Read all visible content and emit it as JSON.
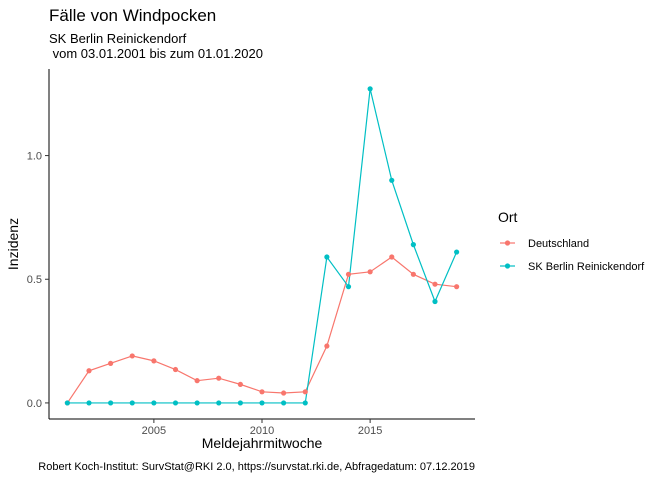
{
  "chart_data": {
    "type": "line",
    "title": "Fälle von Windpocken",
    "subtitle_line1": "SK Berlin Reinickendorf",
    "subtitle_line2": " vom 03.01.2001 bis zum 01.01.2020",
    "xlabel": "Meldejahrmitwoche",
    "ylabel": "Inzidenz",
    "caption": "Robert Koch-Institut: SurvStat@RKI 2.0, https://survstat.rki.de, Abfragedatum: 07.12.2019",
    "xlim": [
      2000.15,
      2019.85
    ],
    "ylim": [
      -0.065,
      1.35
    ],
    "x_ticks": [
      2005,
      2010,
      2015
    ],
    "x_tick_labels": [
      "2005",
      "2010",
      "2015"
    ],
    "y_ticks": [
      0,
      0.5,
      1.0
    ],
    "y_tick_labels": [
      "0.0",
      "0.5",
      "1.0"
    ],
    "grid": false,
    "legend": {
      "title": "Ort",
      "position": "right"
    },
    "x": [
      2001,
      2002,
      2003,
      2004,
      2005,
      2006,
      2007,
      2008,
      2009,
      2010,
      2011,
      2012,
      2013,
      2014,
      2015,
      2016,
      2017,
      2018,
      2019
    ],
    "series": [
      {
        "name": "Deutschland",
        "color": "#F8766D",
        "values": [
          0.0,
          0.13,
          0.16,
          0.19,
          0.17,
          0.135,
          0.09,
          0.1,
          0.075,
          0.045,
          0.04,
          0.045,
          0.23,
          0.52,
          0.53,
          0.59,
          0.52,
          0.48,
          0.47
        ]
      },
      {
        "name": "SK Berlin Reinickendorf",
        "color": "#00BFC4",
        "values": [
          0.0,
          0.0,
          0.0,
          0.0,
          0.0,
          0.0,
          0.0,
          0.0,
          0.0,
          0.0,
          0.0,
          0.0,
          0.59,
          0.47,
          1.27,
          0.9,
          0.64,
          0.41,
          0.61
        ]
      }
    ]
  }
}
